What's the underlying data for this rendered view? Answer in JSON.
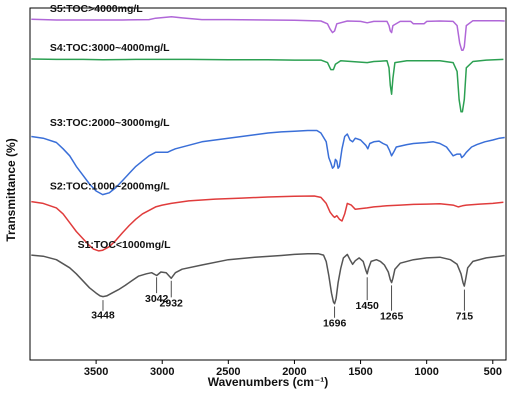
{
  "chart_data": {
    "type": "line",
    "title": "",
    "xlabel": "Wavenumbers (cm⁻¹)",
    "ylabel": "Transmittance (%)",
    "xlim": [
      4000,
      400
    ],
    "x_ticks": [
      {
        "value": 3500,
        "label": "3500"
      },
      {
        "value": 3000,
        "label": "3000"
      },
      {
        "value": 2500,
        "label": "2500"
      },
      {
        "value": 2000,
        "label": "2000"
      },
      {
        "value": 1500,
        "label": "1500"
      },
      {
        "value": 1000,
        "label": "1000"
      },
      {
        "value": 500,
        "label": "500"
      }
    ],
    "y_ticks_shown": false,
    "legend": "none",
    "series": [
      {
        "name": "S5:TOC>4000mg/L",
        "color": "#b067d8",
        "points": [
          [
            3990,
            0.968
          ],
          [
            3800,
            0.966
          ],
          [
            3600,
            0.966
          ],
          [
            3450,
            0.966
          ],
          [
            3300,
            0.966
          ],
          [
            3100,
            0.967
          ],
          [
            3050,
            0.971
          ],
          [
            2930,
            0.975
          ],
          [
            2850,
            0.972
          ],
          [
            2700,
            0.967
          ],
          [
            2500,
            0.967
          ],
          [
            2200,
            0.966
          ],
          [
            2000,
            0.965
          ],
          [
            1800,
            0.963
          ],
          [
            1750,
            0.955
          ],
          [
            1730,
            0.94
          ],
          [
            1712,
            0.93
          ],
          [
            1696,
            0.935
          ],
          [
            1680,
            0.955
          ],
          [
            1600,
            0.963
          ],
          [
            1500,
            0.962
          ],
          [
            1450,
            0.958
          ],
          [
            1400,
            0.962
          ],
          [
            1300,
            0.962
          ],
          [
            1285,
            0.95
          ],
          [
            1275,
            0.935
          ],
          [
            1265,
            0.93
          ],
          [
            1255,
            0.95
          ],
          [
            1200,
            0.962
          ],
          [
            1120,
            0.962
          ],
          [
            1100,
            0.955
          ],
          [
            1020,
            0.955
          ],
          [
            1000,
            0.962
          ],
          [
            900,
            0.963
          ],
          [
            800,
            0.962
          ],
          [
            770,
            0.95
          ],
          [
            750,
            0.9
          ],
          [
            735,
            0.88
          ],
          [
            725,
            0.88
          ],
          [
            715,
            0.89
          ],
          [
            700,
            0.95
          ],
          [
            650,
            0.964
          ],
          [
            550,
            0.964
          ],
          [
            450,
            0.964
          ],
          [
            410,
            0.963
          ]
        ]
      },
      {
        "name": "S4:TOC:3000~4000mg/L",
        "color": "#2ca052",
        "points": [
          [
            3990,
            0.855
          ],
          [
            3800,
            0.854
          ],
          [
            3600,
            0.854
          ],
          [
            3450,
            0.853
          ],
          [
            3200,
            0.854
          ],
          [
            3000,
            0.854
          ],
          [
            2800,
            0.854
          ],
          [
            2500,
            0.853
          ],
          [
            2200,
            0.853
          ],
          [
            2000,
            0.852
          ],
          [
            1800,
            0.852
          ],
          [
            1750,
            0.845
          ],
          [
            1725,
            0.825
          ],
          [
            1705,
            0.825
          ],
          [
            1690,
            0.84
          ],
          [
            1650,
            0.85
          ],
          [
            1450,
            0.845
          ],
          [
            1400,
            0.848
          ],
          [
            1300,
            0.85
          ],
          [
            1285,
            0.83
          ],
          [
            1275,
            0.78
          ],
          [
            1265,
            0.755
          ],
          [
            1255,
            0.8
          ],
          [
            1240,
            0.845
          ],
          [
            1150,
            0.85
          ],
          [
            1000,
            0.85
          ],
          [
            900,
            0.85
          ],
          [
            800,
            0.845
          ],
          [
            770,
            0.82
          ],
          [
            755,
            0.74
          ],
          [
            740,
            0.705
          ],
          [
            730,
            0.705
          ],
          [
            715,
            0.74
          ],
          [
            700,
            0.83
          ],
          [
            650,
            0.848
          ],
          [
            550,
            0.852
          ],
          [
            420,
            0.854
          ]
        ]
      },
      {
        "name": "S3:TOC:2000~3000mg/L",
        "color": "#3a6fd8",
        "points": [
          [
            3990,
            0.635
          ],
          [
            3900,
            0.63
          ],
          [
            3800,
            0.618
          ],
          [
            3750,
            0.6
          ],
          [
            3700,
            0.58
          ],
          [
            3650,
            0.55
          ],
          [
            3600,
            0.525
          ],
          [
            3550,
            0.5
          ],
          [
            3500,
            0.48
          ],
          [
            3450,
            0.47
          ],
          [
            3400,
            0.475
          ],
          [
            3350,
            0.49
          ],
          [
            3300,
            0.51
          ],
          [
            3250,
            0.53
          ],
          [
            3200,
            0.55
          ],
          [
            3150,
            0.565
          ],
          [
            3100,
            0.58
          ],
          [
            3050,
            0.59
          ],
          [
            2960,
            0.59
          ],
          [
            2932,
            0.595
          ],
          [
            2900,
            0.6
          ],
          [
            2800,
            0.61
          ],
          [
            2700,
            0.62
          ],
          [
            2600,
            0.625
          ],
          [
            2500,
            0.63
          ],
          [
            2400,
            0.635
          ],
          [
            2300,
            0.64
          ],
          [
            2200,
            0.645
          ],
          [
            2100,
            0.648
          ],
          [
            2000,
            0.65
          ],
          [
            1900,
            0.652
          ],
          [
            1830,
            0.652
          ],
          [
            1800,
            0.645
          ],
          [
            1760,
            0.62
          ],
          [
            1740,
            0.575
          ],
          [
            1725,
            0.56
          ],
          [
            1712,
            0.545
          ],
          [
            1700,
            0.55
          ],
          [
            1690,
            0.57
          ],
          [
            1680,
            0.565
          ],
          [
            1670,
            0.545
          ],
          [
            1660,
            0.55
          ],
          [
            1640,
            0.6
          ],
          [
            1620,
            0.635
          ],
          [
            1600,
            0.642
          ],
          [
            1580,
            0.625
          ],
          [
            1560,
            0.62
          ],
          [
            1540,
            0.63
          ],
          [
            1500,
            0.625
          ],
          [
            1460,
            0.61
          ],
          [
            1445,
            0.6
          ],
          [
            1430,
            0.615
          ],
          [
            1400,
            0.62
          ],
          [
            1360,
            0.622
          ],
          [
            1330,
            0.615
          ],
          [
            1300,
            0.61
          ],
          [
            1280,
            0.595
          ],
          [
            1265,
            0.58
          ],
          [
            1250,
            0.59
          ],
          [
            1230,
            0.605
          ],
          [
            1150,
            0.612
          ],
          [
            1100,
            0.615
          ],
          [
            1000,
            0.618
          ],
          [
            950,
            0.62
          ],
          [
            900,
            0.615
          ],
          [
            850,
            0.605
          ],
          [
            820,
            0.59
          ],
          [
            800,
            0.58
          ],
          [
            770,
            0.585
          ],
          [
            745,
            0.585
          ],
          [
            735,
            0.575
          ],
          [
            720,
            0.58
          ],
          [
            700,
            0.59
          ],
          [
            660,
            0.605
          ],
          [
            620,
            0.612
          ],
          [
            560,
            0.62
          ],
          [
            500,
            0.625
          ],
          [
            450,
            0.63
          ],
          [
            410,
            0.632
          ]
        ]
      },
      {
        "name": "S2:TOC:1000~2000mg/L",
        "color": "#e03c3c",
        "points": [
          [
            3990,
            0.45
          ],
          [
            3900,
            0.445
          ],
          [
            3800,
            0.432
          ],
          [
            3750,
            0.415
          ],
          [
            3700,
            0.39
          ],
          [
            3650,
            0.365
          ],
          [
            3600,
            0.345
          ],
          [
            3550,
            0.325
          ],
          [
            3520,
            0.315
          ],
          [
            3480,
            0.31
          ],
          [
            3450,
            0.312
          ],
          [
            3400,
            0.322
          ],
          [
            3350,
            0.34
          ],
          [
            3300,
            0.362
          ],
          [
            3250,
            0.382
          ],
          [
            3200,
            0.4
          ],
          [
            3150,
            0.415
          ],
          [
            3100,
            0.425
          ],
          [
            3050,
            0.435
          ],
          [
            3000,
            0.44
          ],
          [
            2932,
            0.445
          ],
          [
            2800,
            0.452
          ],
          [
            2600,
            0.457
          ],
          [
            2400,
            0.46
          ],
          [
            2200,
            0.463
          ],
          [
            2000,
            0.465
          ],
          [
            1850,
            0.466
          ],
          [
            1800,
            0.462
          ],
          [
            1760,
            0.445
          ],
          [
            1730,
            0.42
          ],
          [
            1710,
            0.41
          ],
          [
            1696,
            0.405
          ],
          [
            1680,
            0.41
          ],
          [
            1660,
            0.4
          ],
          [
            1640,
            0.395
          ],
          [
            1620,
            0.415
          ],
          [
            1600,
            0.445
          ],
          [
            1570,
            0.44
          ],
          [
            1540,
            0.428
          ],
          [
            1500,
            0.43
          ],
          [
            1450,
            0.432
          ],
          [
            1400,
            0.435
          ],
          [
            1300,
            0.438
          ],
          [
            1200,
            0.44
          ],
          [
            1100,
            0.442
          ],
          [
            1000,
            0.443
          ],
          [
            900,
            0.444
          ],
          [
            800,
            0.44
          ],
          [
            760,
            0.435
          ],
          [
            730,
            0.438
          ],
          [
            700,
            0.44
          ],
          [
            600,
            0.443
          ],
          [
            500,
            0.445
          ],
          [
            420,
            0.448
          ]
        ]
      },
      {
        "name": "S1:TOC<1000mg/L",
        "color": "#555555",
        "points": [
          [
            3990,
            0.298
          ],
          [
            3900,
            0.295
          ],
          [
            3800,
            0.285
          ],
          [
            3700,
            0.262
          ],
          [
            3650,
            0.245
          ],
          [
            3600,
            0.225
          ],
          [
            3550,
            0.205
          ],
          [
            3500,
            0.19
          ],
          [
            3470,
            0.182
          ],
          [
            3448,
            0.18
          ],
          [
            3420,
            0.182
          ],
          [
            3380,
            0.19
          ],
          [
            3330,
            0.2
          ],
          [
            3280,
            0.212
          ],
          [
            3230,
            0.225
          ],
          [
            3180,
            0.238
          ],
          [
            3120,
            0.245
          ],
          [
            3080,
            0.248
          ],
          [
            3042,
            0.24
          ],
          [
            3010,
            0.25
          ],
          [
            2970,
            0.248
          ],
          [
            2932,
            0.232
          ],
          [
            2900,
            0.248
          ],
          [
            2850,
            0.258
          ],
          [
            2700,
            0.27
          ],
          [
            2500,
            0.285
          ],
          [
            2300,
            0.292
          ],
          [
            2100,
            0.297
          ],
          [
            2000,
            0.3
          ],
          [
            1900,
            0.302
          ],
          [
            1820,
            0.302
          ],
          [
            1780,
            0.298
          ],
          [
            1760,
            0.28
          ],
          [
            1740,
            0.24
          ],
          [
            1720,
            0.19
          ],
          [
            1705,
            0.165
          ],
          [
            1696,
            0.16
          ],
          [
            1685,
            0.175
          ],
          [
            1670,
            0.22
          ],
          [
            1650,
            0.26
          ],
          [
            1630,
            0.29
          ],
          [
            1600,
            0.3
          ],
          [
            1580,
            0.285
          ],
          [
            1560,
            0.272
          ],
          [
            1540,
            0.282
          ],
          [
            1510,
            0.29
          ],
          [
            1480,
            0.28
          ],
          [
            1460,
            0.255
          ],
          [
            1450,
            0.245
          ],
          [
            1440,
            0.26
          ],
          [
            1420,
            0.28
          ],
          [
            1380,
            0.285
          ],
          [
            1350,
            0.28
          ],
          [
            1320,
            0.27
          ],
          [
            1290,
            0.25
          ],
          [
            1275,
            0.228
          ],
          [
            1265,
            0.22
          ],
          [
            1255,
            0.232
          ],
          [
            1240,
            0.258
          ],
          [
            1200,
            0.275
          ],
          [
            1100,
            0.285
          ],
          [
            1000,
            0.29
          ],
          [
            900,
            0.292
          ],
          [
            820,
            0.285
          ],
          [
            770,
            0.272
          ],
          [
            740,
            0.245
          ],
          [
            725,
            0.22
          ],
          [
            715,
            0.21
          ],
          [
            705,
            0.23
          ],
          [
            690,
            0.262
          ],
          [
            650,
            0.28
          ],
          [
            550,
            0.29
          ],
          [
            450,
            0.295
          ],
          [
            410,
            0.297
          ]
        ]
      }
    ],
    "series_label_anchors": [
      {
        "x": 3850,
        "y": 0.988
      },
      {
        "x": 3850,
        "y": 0.878
      },
      {
        "x": 3850,
        "y": 0.665
      },
      {
        "x": 3850,
        "y": 0.484
      },
      {
        "x": 3640,
        "y": 0.318
      }
    ],
    "annotations": [
      {
        "text": "3448",
        "x": 3448,
        "y": 0.118,
        "line_from": 0.17,
        "line_to": 0.14
      },
      {
        "text": "3042",
        "x": 3042,
        "y": 0.165,
        "line_from": 0.235,
        "line_to": 0.19
      },
      {
        "text": "2932",
        "x": 2932,
        "y": 0.152,
        "line_from": 0.225,
        "line_to": 0.178
      },
      {
        "text": "1696",
        "x": 1696,
        "y": 0.095,
        "line_from": 0.152,
        "line_to": 0.12
      },
      {
        "text": "1450",
        "x": 1450,
        "y": 0.145,
        "line_from": 0.235,
        "line_to": 0.17
      },
      {
        "text": "1265",
        "x": 1265,
        "y": 0.115,
        "line_from": 0.212,
        "line_to": 0.14
      },
      {
        "text": "715",
        "x": 715,
        "y": 0.115,
        "line_from": 0.2,
        "line_to": 0.14
      }
    ]
  }
}
